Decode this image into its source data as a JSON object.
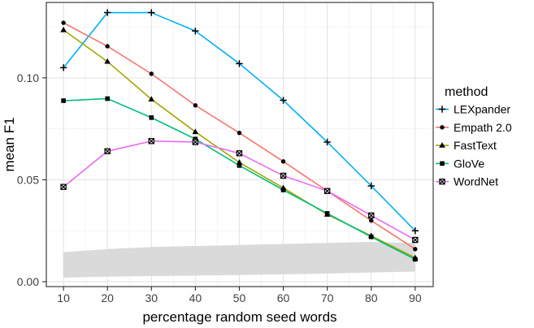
{
  "chart_data": {
    "type": "line",
    "title": "",
    "xlabel": "percentage random seed words",
    "ylabel": "mean F1",
    "legend_title": "method",
    "legend_position": "right",
    "grid": true,
    "panel_border_color": "#2b2b2b",
    "major_grid_color": "#e4e4e4",
    "minor_grid_color": "#f2f2f2",
    "tick_color": "#2b2b2b",
    "x": [
      10,
      20,
      30,
      40,
      50,
      60,
      70,
      80,
      90
    ],
    "x_tick_labels": [
      "10",
      "20",
      "30",
      "40",
      "50",
      "60",
      "70",
      "80",
      "90"
    ],
    "x_minor_ticks": [
      15,
      25,
      35,
      45,
      55,
      65,
      75,
      85
    ],
    "y_ticks": [
      {
        "value": 0.0,
        "label": "0.00"
      },
      {
        "value": 0.05,
        "label": "0.05"
      },
      {
        "value": 0.1,
        "label": "0.10"
      }
    ],
    "y_minor_ticks": [
      0.025,
      0.075,
      0.125
    ],
    "xlim": [
      6.1,
      94.1
    ],
    "ylim": [
      -0.0024,
      0.137
    ],
    "series": [
      {
        "name": "LEXpander",
        "color": "#00B0F6",
        "marker": "plus",
        "values": [
          0.105,
          0.132,
          0.132,
          0.123,
          0.107,
          0.089,
          0.0685,
          0.047,
          0.025
        ]
      },
      {
        "name": "Empath 2.0",
        "color": "#F8766D",
        "marker": "circle",
        "values": [
          0.127,
          0.1155,
          0.102,
          0.0865,
          0.073,
          0.059,
          0.0445,
          0.03,
          0.016
        ]
      },
      {
        "name": "FastText",
        "color": "#A3A500",
        "marker": "triangle",
        "values": [
          0.1235,
          0.108,
          0.0895,
          0.0735,
          0.0585,
          0.046,
          0.033,
          0.0225,
          0.0117
        ]
      },
      {
        "name": "GloVe",
        "color": "#00BF7D",
        "marker": "square",
        "values": [
          0.0888,
          0.0898,
          0.0805,
          0.07,
          0.057,
          0.045,
          0.0335,
          0.022,
          0.011
        ]
      },
      {
        "name": "WordNet",
        "color": "#E76BF3",
        "marker": "square-x",
        "values": [
          0.0465,
          0.064,
          0.069,
          0.0685,
          0.063,
          0.052,
          0.0445,
          0.0325,
          0.0205
        ]
      }
    ],
    "ribbon": {
      "name": "baseline-range",
      "color": "#DADADA",
      "x": [
        10,
        20,
        30,
        40,
        50,
        60,
        70,
        80,
        90
      ],
      "upper": [
        0.0145,
        0.016,
        0.017,
        0.0175,
        0.018,
        0.0185,
        0.019,
        0.0195,
        0.019
      ],
      "lower": [
        0.002,
        0.0025,
        0.0028,
        0.003,
        0.0033,
        0.0036,
        0.004,
        0.0045,
        0.005
      ]
    }
  }
}
